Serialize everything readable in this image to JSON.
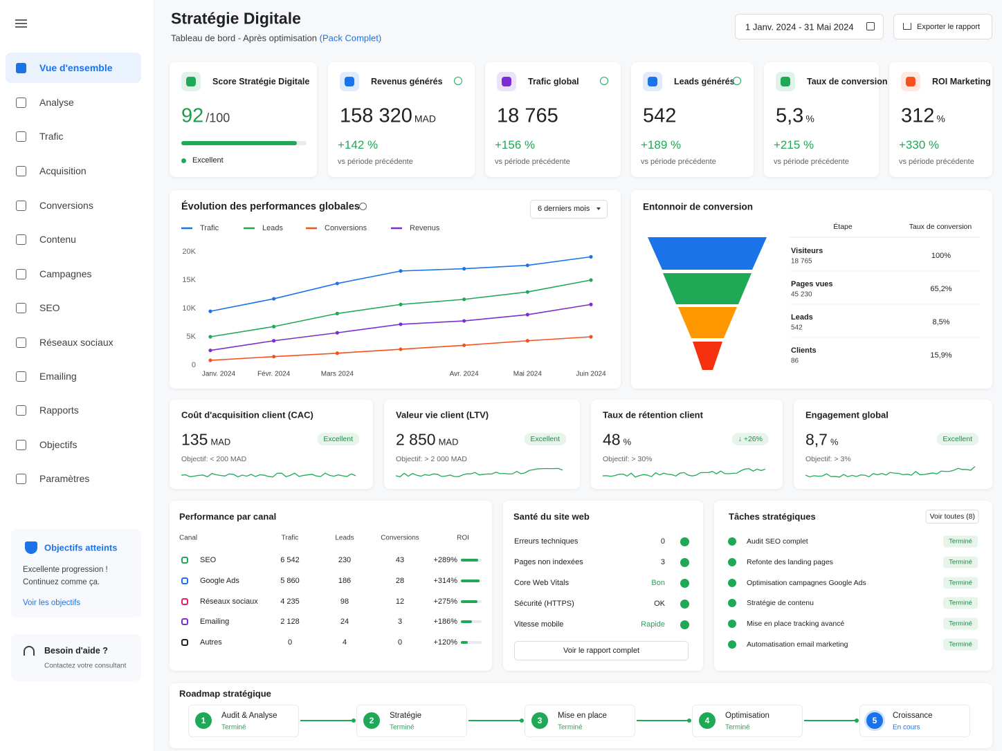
{
  "sidebar": {
    "nav": [
      "Vue d'ensemble",
      "Analyse",
      "Trafic",
      "Acquisition",
      "Conversions",
      "Contenu",
      "Campagnes",
      "SEO",
      "Réseaux sociaux",
      "Emailing",
      "Rapports",
      "Objectifs",
      "Paramètres"
    ],
    "goals_box": {
      "title": "Objectifs atteints",
      "text_lines": [
        "Excellente progression !",
        "Continuez comme ça."
      ],
      "link": "Voir les objectifs"
    },
    "help_box": {
      "title": "Besoin d'aide ?",
      "subtitle": "Contactez votre consultant"
    }
  },
  "header": {
    "title": "Stratégie Digitale",
    "subtitle": "Tableau de bord - Après optimisation",
    "subtitle_link": "(Pack Complet)",
    "date_range": "1 Janv. 2024 - 31 Mai 2024",
    "export": "Exporter le rapport"
  },
  "kpis": [
    {
      "label": "Score Stratégie Digitale",
      "value": 92,
      "unit": "/100",
      "status": "Excellent"
    },
    {
      "label": "Revenus générés",
      "value": "158 320",
      "unit": "MAD",
      "change": "+142 %",
      "note": "vs période précédente"
    },
    {
      "label": "Trafic global",
      "value": "18 765",
      "change": "+156 %",
      "note": "vs période précédente"
    },
    {
      "label": "Leads générés",
      "value": "542",
      "change": "+189 %",
      "note": "vs période précédente"
    },
    {
      "label": "Taux de conversion",
      "value": "5,3",
      "unit": "%",
      "change": "+215 %",
      "note": "vs période précédente"
    },
    {
      "label": "ROI Marketing",
      "value": "312",
      "unit": "%",
      "change": "+330 %",
      "note": "vs période précédente"
    }
  ],
  "chart_data": {
    "type": "line",
    "title": "Évolution des performances globales",
    "period": "6 derniers mois",
    "categories": [
      "Janv. 2024",
      "Févr. 2024",
      "Mars 2024",
      null,
      "Avr. 2024",
      "Mai 2024",
      "Juin 2024"
    ],
    "series": [
      {
        "name": "Trafic",
        "color": "#1a73e8",
        "values": [
          9500,
          11700,
          14400,
          16600,
          17000,
          17600,
          19100
        ]
      },
      {
        "name": "Leads",
        "color": "#1fa855",
        "values": [
          5000,
          6800,
          9100,
          10700,
          11600,
          12900,
          15000
        ]
      },
      {
        "name": "Conversions",
        "color": "#f4511e",
        "values": [
          850,
          1500,
          2100,
          2800,
          3500,
          4300,
          5000
        ]
      },
      {
        "name": "Revenus",
        "color": "#7b2fd1",
        "values": [
          2600,
          4300,
          5700,
          7200,
          7800,
          8900,
          10700
        ]
      }
    ],
    "ylim": [
      0,
      20000
    ],
    "yticks": [
      0,
      {
        "value": 5000,
        "label": "5K"
      },
      {
        "value": 10000,
        "label": "10K"
      },
      {
        "value": 15000,
        "label": "15K"
      },
      {
        "value": 20000,
        "label": "20K"
      }
    ],
    "grid": false,
    "legend": "top-left"
  },
  "funnel": {
    "title": "Entonnoir de conversion",
    "columns": [
      "Étape",
      "Taux de conversion"
    ],
    "rows": [
      {
        "name": "Visiteurs",
        "value": "18 765",
        "rate": "100%"
      },
      {
        "name": "Pages vues",
        "value": "45 230",
        "rate": "65,2%"
      },
      {
        "name": "Leads",
        "value": "542",
        "rate": "8,5%"
      },
      {
        "name": "Clients",
        "value": "86",
        "rate": "15,9%"
      }
    ]
  },
  "metrics": [
    {
      "title": "Coût d'acquisition client (CAC)",
      "value": "135",
      "unit": "MAD",
      "badge": "Excellent",
      "goal": "Objectif: < 200 MAD"
    },
    {
      "title": "Valeur vie client (LTV)",
      "value": "2 850",
      "unit": "MAD",
      "badge": "Excellent",
      "goal": "Objectif: > 2 000 MAD"
    },
    {
      "title": "Taux de rétention client",
      "value": "48",
      "unit": "%",
      "badge": "↓ +26%",
      "goal": "Objectif: > 30%"
    },
    {
      "title": "Engagement global",
      "value": "8,7",
      "unit": "%",
      "badge": "Excellent",
      "goal": "Objectif: > 3%"
    }
  ],
  "channels": {
    "title": "Performance par canal",
    "columns": [
      "Canal",
      "Trafic",
      "Leads",
      "Conversions",
      "ROI"
    ],
    "rows": [
      [
        "SEO",
        "6 542",
        "230",
        "43",
        "+289%"
      ],
      [
        "Google Ads",
        "5 860",
        "186",
        "28",
        "+314%"
      ],
      [
        "Réseaux sociaux",
        "4 235",
        "98",
        "12",
        "+275%"
      ],
      [
        "Emailing",
        "2 128",
        "24",
        "3",
        "+186%"
      ],
      [
        "Autres",
        "0",
        "4",
        "0",
        "+120%"
      ]
    ]
  },
  "site_health": {
    "title": "Santé du site web",
    "rows": [
      {
        "label": "Erreurs techniques",
        "value": "0"
      },
      {
        "label": "Pages non indexées",
        "value": "3"
      },
      {
        "label": "Core Web Vitals",
        "value": "Bon"
      },
      {
        "label": "Sécurité (HTTPS)",
        "value": "OK"
      },
      {
        "label": "Vitesse mobile",
        "value": "Rapide"
      }
    ],
    "button": "Voir le rapport complet"
  },
  "tasks": {
    "title": "Tâches stratégiques",
    "button": "Voir toutes (8)",
    "items": [
      {
        "label": "Audit SEO complet",
        "status": "Terminé"
      },
      {
        "label": "Refonte des landing pages",
        "status": "Terminé"
      },
      {
        "label": "Optimisation campagnes Google Ads",
        "status": "Terminé"
      },
      {
        "label": "Stratégie de contenu",
        "status": "Terminé"
      },
      {
        "label": "Mise en place tracking avancé",
        "status": "Terminé"
      },
      {
        "label": "Automatisation email marketing",
        "status": "Terminé"
      }
    ]
  },
  "roadmap": {
    "title": "Roadmap stratégique",
    "steps": [
      {
        "number": "1",
        "name": "Audit & Analyse",
        "status": "Terminé"
      },
      {
        "number": "2",
        "name": "Stratégie",
        "status": "Terminé"
      },
      {
        "number": "3",
        "name": "Mise en place",
        "status": "Terminé"
      },
      {
        "number": "4",
        "name": "Optimisation",
        "status": "Terminé"
      },
      {
        "number": "5",
        "name": "Croissance",
        "status": "En cours"
      }
    ]
  }
}
